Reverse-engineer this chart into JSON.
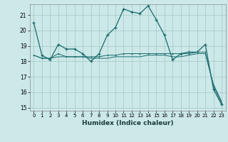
{
  "xlabel": "Humidex (Indice chaleur)",
  "background_color": "#cce8e8",
  "grid_color": "#aacccc",
  "line_color": "#1a6b6b",
  "xlim": [
    -0.5,
    23.5
  ],
  "ylim": [
    14.8,
    21.7
  ],
  "yticks": [
    15,
    16,
    17,
    18,
    19,
    20,
    21
  ],
  "xticks": [
    0,
    1,
    2,
    3,
    4,
    5,
    6,
    7,
    8,
    9,
    10,
    11,
    12,
    13,
    14,
    15,
    16,
    17,
    18,
    19,
    20,
    21,
    22,
    23
  ],
  "series": [
    [
      20.5,
      18.4,
      18.1,
      19.1,
      18.8,
      18.8,
      18.5,
      18.0,
      18.5,
      19.7,
      20.2,
      21.4,
      21.2,
      21.1,
      21.6,
      20.7,
      19.7,
      18.1,
      18.5,
      18.6,
      18.6,
      19.1,
      16.2,
      15.2
    ],
    [
      18.4,
      18.2,
      18.2,
      18.5,
      18.3,
      18.3,
      18.3,
      18.3,
      18.3,
      18.4,
      18.4,
      18.5,
      18.5,
      18.5,
      18.5,
      18.5,
      18.5,
      18.5,
      18.5,
      18.5,
      18.6,
      18.6,
      16.4,
      15.3
    ],
    [
      18.4,
      18.2,
      18.2,
      18.3,
      18.3,
      18.3,
      18.3,
      18.2,
      18.2,
      18.2,
      18.3,
      18.3,
      18.3,
      18.3,
      18.4,
      18.4,
      18.4,
      18.3,
      18.3,
      18.4,
      18.5,
      18.5,
      16.5,
      15.4
    ]
  ]
}
